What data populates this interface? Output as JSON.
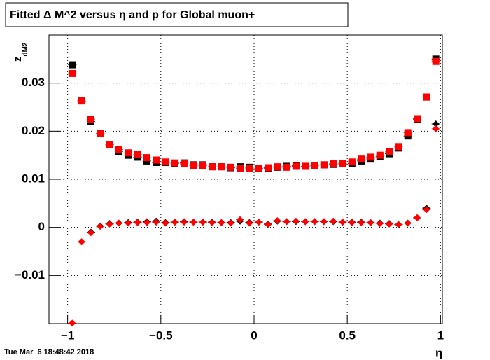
{
  "chart_data": {
    "type": "scatter",
    "title": "Fitted Δ M^2 versus η and p for Global muon+",
    "x_label": "η",
    "y_label": "z",
    "y_label_subscript": "dM2",
    "footer": "Tue Mar  6 18:48:42 2018",
    "xlim": [
      -1.1,
      1.01
    ],
    "ylim": [
      -0.02,
      0.04
    ],
    "xticks": [
      {
        "value": -1,
        "label": "−1"
      },
      {
        "value": -0.5,
        "label": "−0.5"
      },
      0,
      0.5,
      1
    ],
    "yticks": [
      {
        "value": -0.01,
        "label": "−0.01"
      },
      0,
      0.01,
      0.02,
      0.03
    ],
    "grid": true,
    "x": [
      -0.975,
      -0.925,
      -0.875,
      -0.825,
      -0.775,
      -0.725,
      -0.675,
      -0.625,
      -0.575,
      -0.525,
      -0.475,
      -0.425,
      -0.375,
      -0.325,
      -0.275,
      -0.225,
      -0.175,
      -0.125,
      -0.075,
      -0.025,
      0.025,
      0.075,
      0.125,
      0.175,
      0.225,
      0.275,
      0.325,
      0.375,
      0.425,
      0.475,
      0.525,
      0.575,
      0.625,
      0.675,
      0.725,
      0.775,
      0.825,
      0.875,
      0.925,
      0.975
    ],
    "series": [
      {
        "color": "#000000",
        "marker": "square",
        "values": [
          0.0338,
          0.0263,
          0.022,
          0.0195,
          0.0172,
          0.0158,
          0.015,
          0.0146,
          0.0138,
          0.0135,
          0.0135,
          0.0133,
          0.0134,
          0.013,
          0.013,
          0.0126,
          0.0126,
          0.0124,
          0.0126,
          0.0125,
          0.0123,
          0.0122,
          0.0125,
          0.0127,
          0.0128,
          0.0127,
          0.0128,
          0.013,
          0.0131,
          0.0132,
          0.0133,
          0.0138,
          0.0142,
          0.0147,
          0.0153,
          0.0165,
          0.019,
          0.0225,
          0.0271,
          0.035
        ]
      },
      {
        "color": "#ff0000",
        "marker": "square",
        "values": [
          0.032,
          0.0263,
          0.0225,
          0.0195,
          0.0172,
          0.0162,
          0.0155,
          0.0152,
          0.0145,
          0.014,
          0.0136,
          0.0134,
          0.0132,
          0.0129,
          0.0128,
          0.0126,
          0.0126,
          0.0125,
          0.0123,
          0.0123,
          0.0122,
          0.0124,
          0.0126,
          0.0125,
          0.0127,
          0.0127,
          0.0129,
          0.013,
          0.0132,
          0.0133,
          0.0136,
          0.0142,
          0.0146,
          0.015,
          0.0157,
          0.0168,
          0.0197,
          0.0226,
          0.0271,
          0.0345
        ]
      },
      {
        "color": "#000000",
        "marker": "diamond",
        "values": [
          null,
          -0.003,
          -0.001,
          0.0003,
          0.0008,
          0.0009,
          0.001,
          0.0011,
          0.0012,
          0.0013,
          0.001,
          0.0011,
          0.0012,
          0.0011,
          0.0011,
          0.0011,
          0.001,
          0.001,
          0.0013,
          0.001,
          0.0011,
          0.0007,
          0.0013,
          0.0012,
          0.0012,
          0.0012,
          0.0012,
          0.0012,
          0.0012,
          0.0011,
          0.0011,
          0.0011,
          0.001,
          0.0009,
          0.0008,
          0.0006,
          0.0009,
          0.002,
          0.004,
          0.0215
        ]
      },
      {
        "color": "#ff0000",
        "marker": "diamond",
        "values": [
          -0.0199,
          -0.003,
          -0.0011,
          0.0002,
          0.0007,
          0.0009,
          0.0009,
          0.001,
          0.001,
          0.0011,
          0.0009,
          0.0011,
          0.0011,
          0.0011,
          0.0011,
          0.001,
          0.001,
          0.0009,
          0.0016,
          0.0009,
          0.0011,
          0.0006,
          0.0014,
          0.0012,
          0.0013,
          0.0012,
          0.0012,
          0.0012,
          0.0013,
          0.0011,
          0.001,
          0.001,
          0.001,
          0.0008,
          0.0007,
          0.0006,
          0.0009,
          0.002,
          0.0037,
          0.0205
        ]
      }
    ]
  }
}
